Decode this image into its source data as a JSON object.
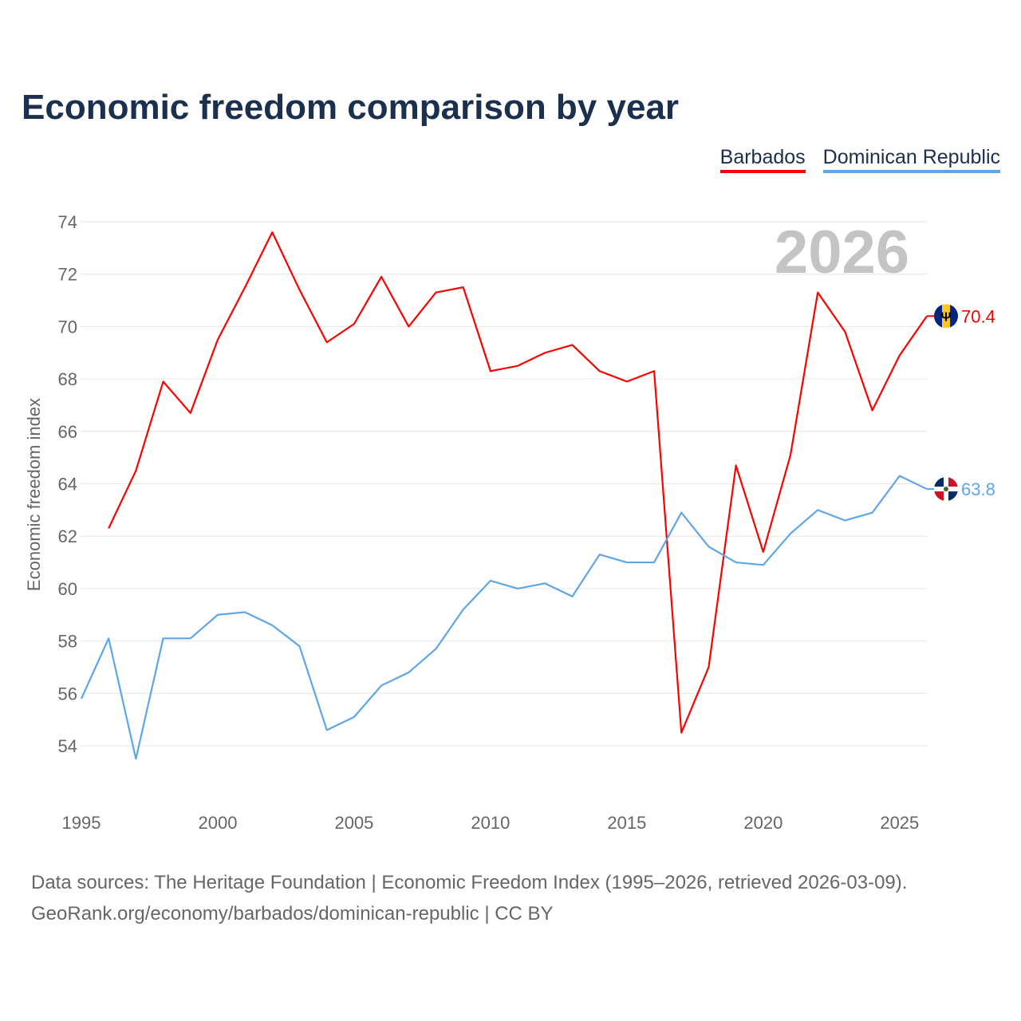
{
  "title": "Economic freedom comparison by year",
  "legend": [
    {
      "label": "Barbados",
      "color": "#ff0000"
    },
    {
      "label": "Dominican Republic",
      "color": "#5ea5ea"
    }
  ],
  "year_watermark": "2026",
  "footer": {
    "line1": "Data sources: The Heritage Foundation | Economic Freedom Index (1995–2026, retrieved 2026-03-09).",
    "line2": "GeoRank.org/economy/barbados/dominican-republic | CC BY"
  },
  "chart_data": {
    "type": "line",
    "title": "Economic freedom comparison by year",
    "xlabel": "",
    "ylabel": "Economic freedom index",
    "xlim": [
      1995,
      2026
    ],
    "ylim": [
      54,
      74
    ],
    "xticks": [
      1995,
      2000,
      2005,
      2010,
      2015,
      2020,
      2025
    ],
    "yticks": [
      54,
      56,
      58,
      60,
      62,
      64,
      66,
      68,
      70,
      72,
      74
    ],
    "grid": true,
    "legend_position": "top-right",
    "series": [
      {
        "name": "Barbados",
        "color": "#ff0000",
        "end_label": "70.4",
        "flag_icon": "barbados-flag-icon",
        "x": [
          1996,
          1997,
          1998,
          1999,
          2000,
          2001,
          2002,
          2003,
          2004,
          2005,
          2006,
          2007,
          2008,
          2009,
          2010,
          2011,
          2012,
          2013,
          2014,
          2015,
          2016,
          2017,
          2018,
          2019,
          2020,
          2021,
          2022,
          2023,
          2024,
          2025,
          2026
        ],
        "values": [
          62.3,
          64.5,
          67.9,
          66.7,
          69.5,
          71.5,
          73.6,
          71.4,
          69.4,
          70.1,
          71.9,
          70.0,
          71.3,
          71.5,
          68.3,
          68.5,
          69.0,
          69.3,
          68.3,
          67.9,
          68.3,
          54.5,
          57.0,
          64.7,
          61.4,
          65.1,
          71.3,
          69.8,
          66.8,
          68.9,
          70.4
        ]
      },
      {
        "name": "Dominican Republic",
        "color": "#5ea5ea",
        "end_label": "63.8",
        "flag_icon": "dominican-republic-flag-icon",
        "x": [
          1995,
          1996,
          1997,
          1998,
          1999,
          2000,
          2001,
          2002,
          2003,
          2004,
          2005,
          2006,
          2007,
          2008,
          2009,
          2010,
          2011,
          2012,
          2013,
          2014,
          2015,
          2016,
          2017,
          2018,
          2019,
          2020,
          2021,
          2022,
          2023,
          2024,
          2025,
          2026
        ],
        "values": [
          55.8,
          58.1,
          53.5,
          58.1,
          58.1,
          59.0,
          59.1,
          58.6,
          57.8,
          54.6,
          55.1,
          56.3,
          56.8,
          57.7,
          59.2,
          60.3,
          60.0,
          60.2,
          59.7,
          61.3,
          61.0,
          61.0,
          62.9,
          61.6,
          61.0,
          60.9,
          62.1,
          63.0,
          62.6,
          62.9,
          64.3,
          63.8
        ]
      }
    ]
  }
}
